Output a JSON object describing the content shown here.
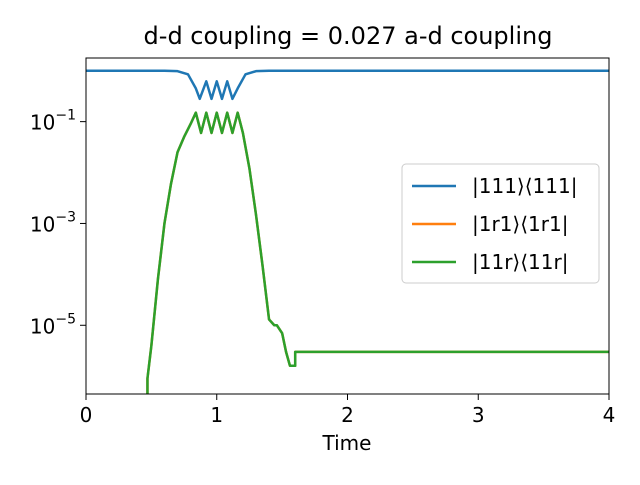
{
  "chart_data": {
    "type": "line",
    "title": "d-d coupling = 0.027 a-d coupling",
    "xlabel": "Time",
    "ylabel": "",
    "xlim": [
      0,
      4
    ],
    "ylim_log10": [
      -6.35,
      0.25
    ],
    "yscale": "log",
    "grid": false,
    "legend_position": "center-right",
    "x_ticks": [
      0,
      1,
      2,
      3,
      4
    ],
    "x_tick_labels": [
      "0",
      "1",
      "2",
      "3",
      "4"
    ],
    "y_ticks": [
      {
        "exp": -1,
        "label": "−1"
      },
      {
        "exp": -3,
        "label": "−3"
      },
      {
        "exp": -5,
        "label": "−5"
      }
    ],
    "y_tick_base": "10",
    "series": [
      {
        "name": "|111⟩⟨111|",
        "color": "#1f77b4",
        "x": [
          0,
          0.6,
          0.7,
          0.78,
          0.84,
          0.87,
          0.92,
          0.96,
          1.0,
          1.04,
          1.08,
          1.12,
          1.16,
          1.22,
          1.3,
          1.4,
          4.0
        ],
        "y": [
          1.0,
          1.0,
          0.98,
          0.85,
          0.45,
          0.28,
          0.62,
          0.28,
          0.62,
          0.28,
          0.62,
          0.28,
          0.45,
          0.85,
          0.98,
          1.0,
          1.0
        ]
      },
      {
        "name": "|1r1⟩⟨1r1|",
        "color": "#ff7f0e",
        "x": [
          0.47,
          0.47,
          0.5,
          0.55,
          0.6,
          0.65,
          0.7,
          0.75,
          0.8,
          0.84,
          0.88,
          0.92,
          0.96,
          1.0,
          1.04,
          1.08,
          1.12,
          1.16,
          1.2,
          1.25,
          1.3,
          1.35,
          1.4,
          1.44,
          1.46,
          1.5,
          1.53,
          1.56,
          1.58,
          1.6,
          1.6,
          1.62,
          4.0
        ],
        "y": [
          4.5e-07,
          9e-07,
          4e-06,
          8e-05,
          0.001,
          0.006,
          0.025,
          0.05,
          0.09,
          0.15,
          0.06,
          0.15,
          0.06,
          0.15,
          0.06,
          0.15,
          0.06,
          0.15,
          0.06,
          0.012,
          0.0015,
          0.00015,
          1.3e-05,
          1e-05,
          1e-05,
          7e-06,
          3e-06,
          1.6e-06,
          1.6e-06,
          1.6e-06,
          3e-06,
          3e-06,
          3e-06
        ]
      },
      {
        "name": "|11r⟩⟨11r|",
        "color": "#2ca02c",
        "x": [
          0.47,
          0.47,
          0.5,
          0.55,
          0.6,
          0.65,
          0.7,
          0.75,
          0.8,
          0.84,
          0.88,
          0.92,
          0.96,
          1.0,
          1.04,
          1.08,
          1.12,
          1.16,
          1.2,
          1.25,
          1.3,
          1.35,
          1.4,
          1.44,
          1.46,
          1.5,
          1.53,
          1.56,
          1.58,
          1.6,
          1.6,
          1.62,
          4.0
        ],
        "y": [
          4.5e-07,
          9e-07,
          4e-06,
          8e-05,
          0.001,
          0.006,
          0.025,
          0.05,
          0.09,
          0.15,
          0.06,
          0.15,
          0.06,
          0.15,
          0.06,
          0.15,
          0.06,
          0.15,
          0.06,
          0.012,
          0.0015,
          0.00015,
          1.3e-05,
          1e-05,
          1e-05,
          7e-06,
          3e-06,
          1.6e-06,
          1.6e-06,
          1.6e-06,
          3e-06,
          3e-06,
          3e-06
        ]
      }
    ]
  }
}
